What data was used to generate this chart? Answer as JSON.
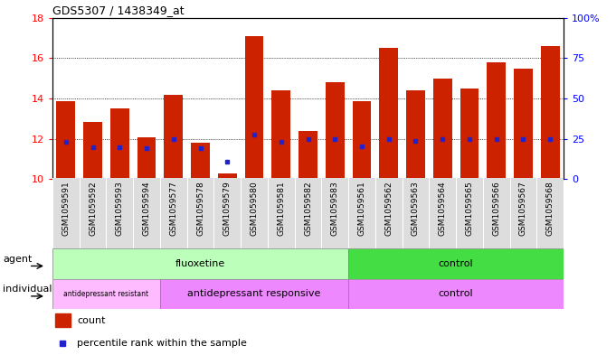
{
  "title": "GDS5307 / 1438349_at",
  "samples": [
    "GSM1059591",
    "GSM1059592",
    "GSM1059593",
    "GSM1059594",
    "GSM1059577",
    "GSM1059578",
    "GSM1059579",
    "GSM1059580",
    "GSM1059581",
    "GSM1059582",
    "GSM1059583",
    "GSM1059561",
    "GSM1059562",
    "GSM1059563",
    "GSM1059564",
    "GSM1059565",
    "GSM1059566",
    "GSM1059567",
    "GSM1059568"
  ],
  "bar_values": [
    13.85,
    12.85,
    13.5,
    12.1,
    14.2,
    11.8,
    10.3,
    17.1,
    14.4,
    12.4,
    14.8,
    13.85,
    16.5,
    14.4,
    15.0,
    14.5,
    15.8,
    15.5,
    16.6
  ],
  "blue_dot_values": [
    11.85,
    11.6,
    11.6,
    11.55,
    12.0,
    11.55,
    10.85,
    12.2,
    11.85,
    12.0,
    12.0,
    11.65,
    12.0,
    11.9,
    12.0,
    12.0,
    12.0,
    12.0,
    12.0
  ],
  "ylim_left": [
    10,
    18
  ],
  "ylim_right": [
    0,
    100
  ],
  "yticks_left": [
    10,
    12,
    14,
    16,
    18
  ],
  "yticks_right": [
    0,
    25,
    50,
    75,
    100
  ],
  "bar_color": "#cc2200",
  "dot_color": "#2222cc",
  "fluoxetine_color": "#bbffbb",
  "control_agent_color": "#44dd44",
  "antidep_resistant_color": "#ffbbff",
  "antidep_responsive_color": "#ee88ff",
  "control_individual_color": "#ee88ff",
  "sample_bg_color": "#dddddd",
  "legend_count_color": "#cc2200",
  "legend_dot_color": "#2222cc"
}
